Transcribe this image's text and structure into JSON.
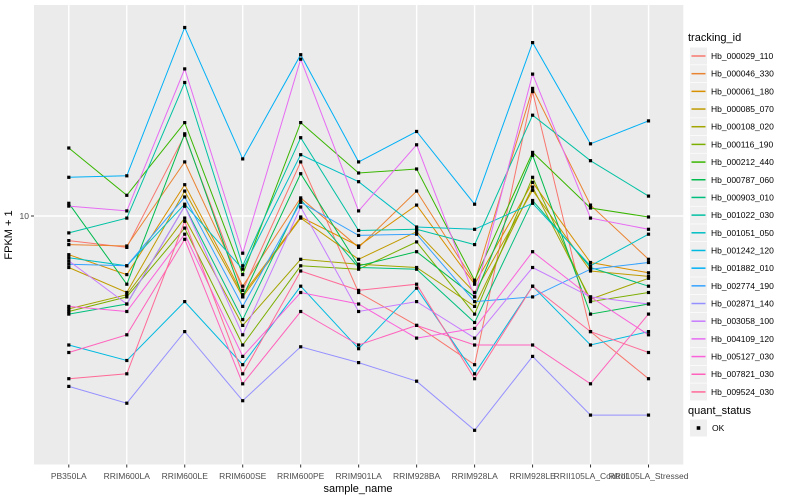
{
  "chart_data": {
    "type": "line",
    "title": "",
    "xlabel": "sample_name",
    "ylabel": "FPKM + 1",
    "y_scale": "log10",
    "y_ticks": [
      10
    ],
    "ylim": [
      0.9,
      80
    ],
    "grid": "major-only",
    "legend_position": "right",
    "color_legend_title": "tracking_id",
    "shape_legend_title": "quant_status",
    "quant_status_value": "OK",
    "point_shape": "square",
    "point_color": "#000000",
    "categories": [
      "PB350LA",
      "RRIM600LA",
      "RRIM600LE",
      "RRIM600SE",
      "RRIM600PE",
      "RRIM901LA",
      "RRIM928BA",
      "RRIM928LA",
      "RRIM928LE",
      "RRII105LA_Control",
      "RRII105LA_Stressed"
    ],
    "series": [
      {
        "name": "Hb_000029_110",
        "color": "#F8766D",
        "values": [
          7.9,
          7.4,
          21.7,
          4.9,
          16.8,
          4.8,
          3.5,
          2.4,
          33.0,
          3.3,
          2.1
        ]
      },
      {
        "name": "Hb_000046_330",
        "color": "#EA8331",
        "values": [
          7.6,
          7.5,
          16.8,
          5.1,
          11.9,
          7.4,
          12.7,
          5.3,
          34.0,
          11.1,
          6.6
        ]
      },
      {
        "name": "Hb_000061_180",
        "color": "#D89000",
        "values": [
          6.9,
          5.7,
          13.5,
          4.7,
          9.9,
          7.5,
          11.1,
          5.2,
          13.8,
          6.4,
          5.8
        ]
      },
      {
        "name": "Hb_000085_070",
        "color": "#C09B00",
        "values": [
          6.1,
          4.8,
          12.7,
          4.6,
          9.8,
          6.6,
          8.6,
          4.8,
          12.8,
          5.9,
          5.6
        ]
      },
      {
        "name": "Hb_000108_020",
        "color": "#A3A500",
        "values": [
          4.1,
          4.7,
          9.8,
          3.5,
          6.6,
          6.3,
          6.1,
          4.2,
          13.2,
          4.5,
          5.5
        ]
      },
      {
        "name": "Hb_000116_190",
        "color": "#7CAE00",
        "values": [
          4.0,
          4.6,
          8.9,
          2.9,
          6.2,
          6.0,
          7.8,
          3.9,
          14.5,
          4.4,
          4.8
        ]
      },
      {
        "name": "Hb_000212_440",
        "color": "#39B600",
        "values": [
          19.2,
          12.2,
          24.5,
          5.7,
          24.5,
          15.1,
          15.7,
          5.4,
          18.4,
          10.8,
          9.9
        ]
      },
      {
        "name": "Hb_000787_060",
        "color": "#00BB4E",
        "values": [
          11.3,
          5.2,
          22.0,
          4.6,
          15.0,
          6.2,
          7.1,
          4.6,
          17.9,
          3.9,
          4.3
        ]
      },
      {
        "name": "Hb_000903_010",
        "color": "#00BF7D",
        "values": [
          3.9,
          4.3,
          11.0,
          3.7,
          11.7,
          6.1,
          6.0,
          3.6,
          11.6,
          6.1,
          5.1
        ]
      },
      {
        "name": "Hb_001022_030",
        "color": "#00C1A3",
        "values": [
          8.5,
          9.8,
          36.0,
          6.2,
          21.2,
          8.7,
          8.8,
          7.6,
          26.3,
          17.0,
          12.1
        ]
      },
      {
        "name": "Hb_001051_050",
        "color": "#00BFC4",
        "values": [
          6.7,
          6.2,
          11.2,
          6.0,
          18.0,
          13.9,
          9.0,
          8.8,
          11.3,
          6.2,
          8.4
        ]
      },
      {
        "name": "Hb_001242_120",
        "color": "#00BAE0",
        "values": [
          2.9,
          2.5,
          4.4,
          2.4,
          5.1,
          2.8,
          5.0,
          2.2,
          5.1,
          2.9,
          3.3
        ]
      },
      {
        "name": "Hb_001882_010",
        "color": "#00B0F6",
        "values": [
          14.5,
          14.7,
          61.0,
          17.3,
          47.0,
          16.8,
          22.5,
          11.2,
          52.8,
          20.0,
          24.9
        ]
      },
      {
        "name": "Hb_002774_190",
        "color": "#35A2FF",
        "values": [
          6.3,
          6.2,
          12.0,
          4.2,
          11.4,
          8.3,
          8.4,
          4.4,
          4.6,
          6.0,
          6.4
        ]
      },
      {
        "name": "Hb_002871_140",
        "color": "#9590FF",
        "values": [
          1.95,
          1.66,
          3.3,
          1.7,
          2.85,
          2.45,
          2.05,
          1.28,
          2.6,
          1.48,
          1.48
        ]
      },
      {
        "name": "Hb_003058_100",
        "color": "#C77CFF",
        "values": [
          6.5,
          4.3,
          11.0,
          3.2,
          10.9,
          4.0,
          4.4,
          3.1,
          6.1,
          4.6,
          4.3
        ]
      },
      {
        "name": "Hb_004109_120",
        "color": "#E76BF3",
        "values": [
          11.0,
          10.5,
          41.0,
          7.0,
          45.0,
          10.5,
          19.8,
          4.6,
          39.0,
          9.8,
          8.8
        ]
      },
      {
        "name": "Hb_005127_030",
        "color": "#FA62DB",
        "values": [
          4.2,
          4.0,
          8.4,
          2.6,
          4.8,
          4.3,
          3.1,
          3.4,
          7.1,
          4.6,
          3.2
        ]
      },
      {
        "name": "Hb_007821_030",
        "color": "#FF62BC",
        "values": [
          2.7,
          3.2,
          8.0,
          2.0,
          4.0,
          2.9,
          3.5,
          2.9,
          2.9,
          2.0,
          3.9
        ]
      },
      {
        "name": "Hb_009524_030",
        "color": "#FF6A98",
        "values": [
          2.1,
          2.2,
          9.5,
          2.2,
          5.9,
          4.9,
          5.2,
          2.1,
          5.1,
          3.3,
          2.7
        ]
      }
    ]
  },
  "colors": {
    "panel_bg": "#EBEBEB",
    "grid": "#FFFFFF",
    "legend_key_bg": "#EFEFEF",
    "tick_mark": "#333333",
    "tick_text": "#4D4D4D",
    "point": "#000000"
  }
}
